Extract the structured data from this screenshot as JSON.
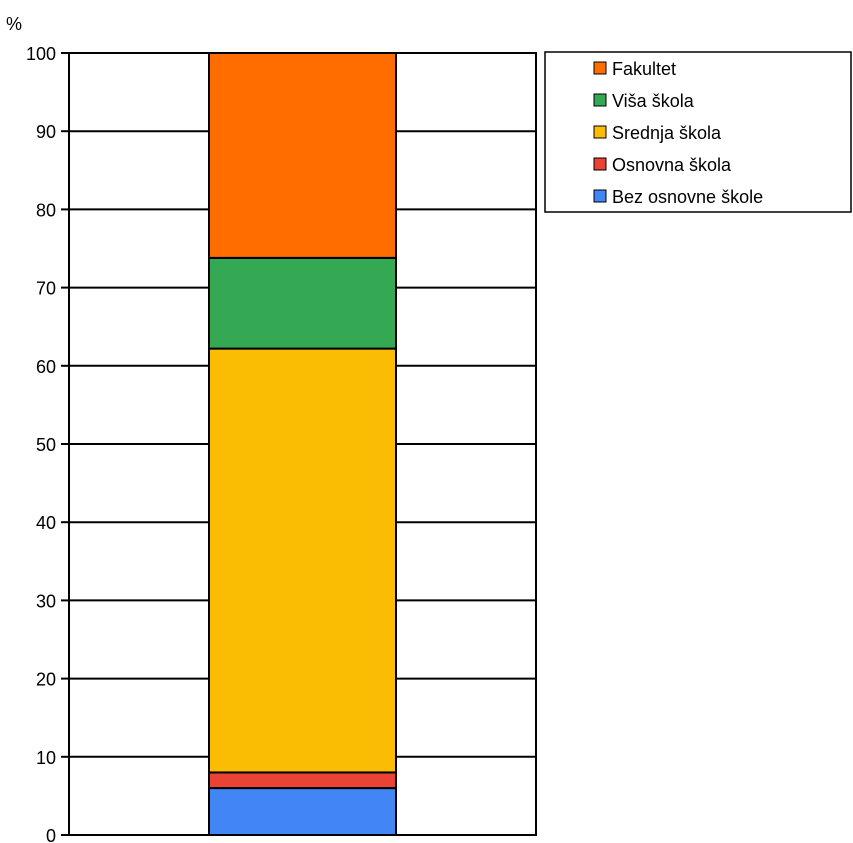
{
  "chart_data": {
    "type": "bar",
    "stacked": true,
    "ylabel": "%",
    "ylim": [
      0,
      100
    ],
    "yticks": [
      0,
      10,
      20,
      30,
      40,
      50,
      60,
      70,
      80,
      90,
      100
    ],
    "grid": true,
    "legend_position": "top-right",
    "series": [
      {
        "name": "Bez osnovne škole",
        "value": 6,
        "color": "#4285f4"
      },
      {
        "name": "Osnovna škola",
        "value": 2,
        "color": "#ea4335"
      },
      {
        "name": "Srednja škola",
        "value": 54.2,
        "color": "#fbbc04"
      },
      {
        "name": "Viša škola",
        "value": 11.6,
        "color": "#34a853"
      },
      {
        "name": "Fakultet",
        "value": 26.2,
        "color": "#ff6d01"
      }
    ]
  }
}
